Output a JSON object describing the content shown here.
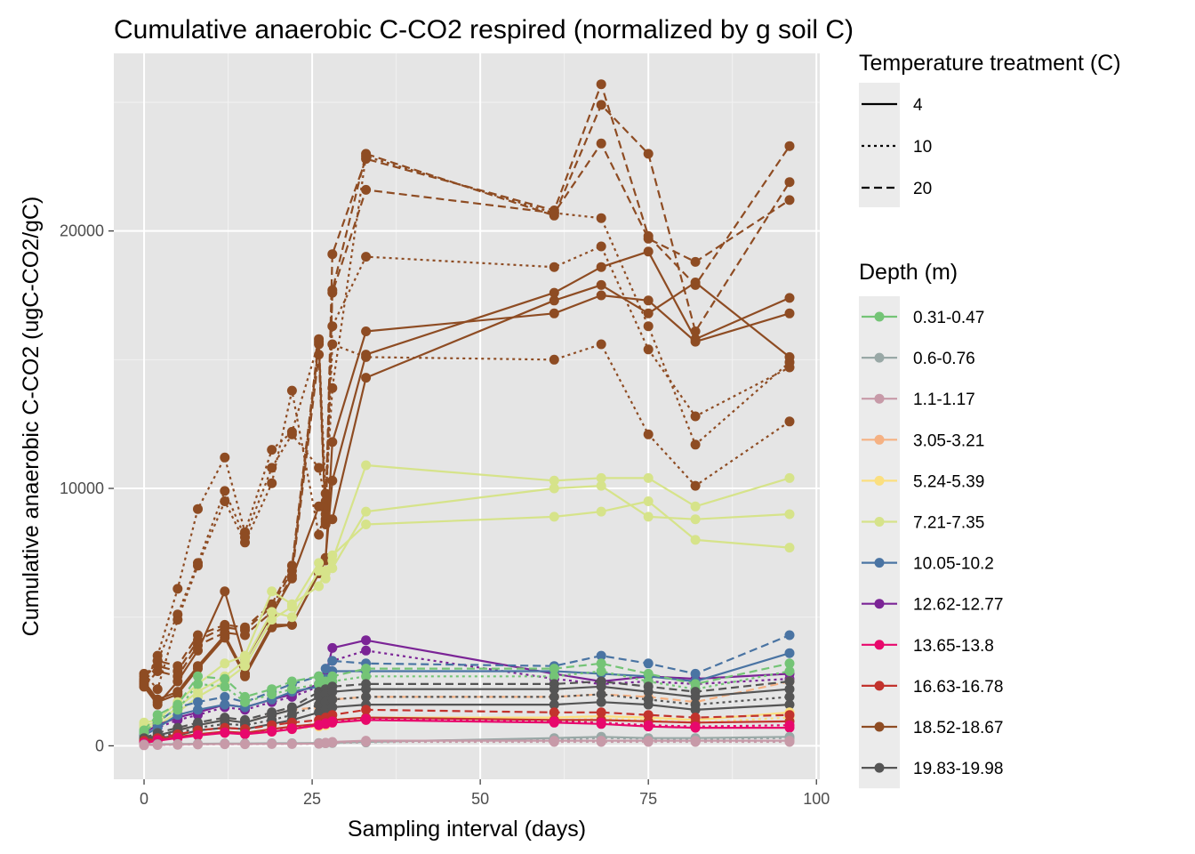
{
  "chart_data": {
    "type": "line",
    "title": "Cumulative anaerobic C-CO2 respired (normalized by g soil C)",
    "xlabel": "Sampling interval (days)",
    "ylabel": "Cumulative anaerobic C-CO2 (ugC-CO2/gC)",
    "xlim": [
      -4.5,
      100.5
    ],
    "ylim": [
      -1300,
      26900
    ],
    "x_ticks": [
      0,
      25,
      50,
      75,
      100
    ],
    "x_tick_labels": [
      "0",
      "25",
      "50",
      "75",
      "100"
    ],
    "y_ticks": [
      0,
      10000,
      20000
    ],
    "y_tick_labels": [
      "0",
      "10000",
      "20000"
    ],
    "grid": true,
    "legend_position": "right",
    "legend_linetype": {
      "title": "Temperature treatment (C)",
      "entries": [
        {
          "label": "4",
          "dash": "solid"
        },
        {
          "label": "10",
          "dash": "dotted"
        },
        {
          "label": "20",
          "dash": "dashed"
        }
      ]
    },
    "legend_color": {
      "title": "Depth (m)",
      "entries": [
        {
          "label": "0.31-0.47",
          "color": "#74c476"
        },
        {
          "label": "0.6-0.76",
          "color": "#99a8a6"
        },
        {
          "label": "1.1-1.17",
          "color": "#c79aa8"
        },
        {
          "label": "3.05-3.21",
          "color": "#f5b183"
        },
        {
          "label": "5.24-5.39",
          "color": "#fbdf7f"
        },
        {
          "label": "7.21-7.35",
          "color": "#d6e38a"
        },
        {
          "label": "10.05-10.2",
          "color": "#4a74a3"
        },
        {
          "label": "12.62-12.77",
          "color": "#7b2496"
        },
        {
          "label": "13.65-13.8",
          "color": "#e8086c"
        },
        {
          "label": "16.63-16.78",
          "color": "#c2332d"
        },
        {
          "label": "18.52-18.67",
          "color": "#8e4c23"
        },
        {
          "label": "19.83-19.98",
          "color": "#555555"
        }
      ]
    },
    "x": [
      0,
      2,
      5,
      8,
      12,
      15,
      19,
      22,
      26,
      27,
      28,
      33,
      61,
      68,
      75,
      82,
      96
    ],
    "series": [
      {
        "depth": "18.52-18.67",
        "temp": "20",
        "color": "#8e4c23",
        "dash": "dashed",
        "values": [
          2700,
          3300,
          3100,
          4300,
          4700,
          4600,
          5500,
          7000,
          15800,
          8800,
          19100,
          22800,
          20800,
          25700,
          19800,
          17900,
          23300
        ]
      },
      {
        "depth": "18.52-18.67",
        "temp": "20",
        "color": "#8e4c23",
        "dash": "dashed",
        "values": [
          2500,
          3100,
          2900,
          4100,
          4600,
          4500,
          5400,
          6800,
          15600,
          8700,
          17700,
          23000,
          20600,
          24900,
          23000,
          16100,
          21900
        ]
      },
      {
        "depth": "18.52-18.67",
        "temp": "20",
        "color": "#8e4c23",
        "dash": "dashed",
        "values": [
          2300,
          2900,
          2700,
          3900,
          4400,
          4300,
          5200,
          6600,
          15200,
          8600,
          17600,
          21600,
          20700,
          23400,
          19700,
          18800,
          21200
        ]
      },
      {
        "depth": "18.52-18.67",
        "temp": "10",
        "color": "#8e4c23",
        "dash": "dotted",
        "values": [
          2400,
          3500,
          6100,
          9200,
          11200,
          8300,
          11500,
          12200,
          15700,
          9800,
          16300,
          19000,
          18600,
          19400,
          15400,
          12800,
          14700
        ]
      },
      {
        "depth": "18.52-18.67",
        "temp": "10",
        "color": "#8e4c23",
        "dash": "dotted",
        "values": [
          2600,
          3300,
          5100,
          7100,
          9900,
          8100,
          10800,
          12100,
          10800,
          9500,
          13900,
          22900,
          20700,
          20500,
          16300,
          11700,
          14900
        ]
      },
      {
        "depth": "18.52-18.67",
        "temp": "10",
        "color": "#8e4c23",
        "dash": "dotted",
        "values": [
          2800,
          2200,
          4900,
          7000,
          9500,
          7900,
          10200,
          13800,
          8200,
          9200,
          15600,
          15100,
          15000,
          15600,
          12100,
          10100,
          12600
        ]
      },
      {
        "depth": "18.52-18.67",
        "temp": "4",
        "color": "#8e4c23",
        "dash": "solid",
        "values": [
          2500,
          1800,
          2100,
          3100,
          4300,
          2800,
          4700,
          4700,
          6700,
          7300,
          10300,
          15200,
          17600,
          18600,
          19200,
          15800,
          17400
        ]
      },
      {
        "depth": "18.52-18.67",
        "temp": "4",
        "color": "#8e4c23",
        "dash": "solid",
        "values": [
          2400,
          1700,
          2000,
          3000,
          4200,
          2700,
          4600,
          4700,
          6700,
          7200,
          11800,
          16100,
          16800,
          17500,
          17300,
          15700,
          16800
        ]
      },
      {
        "depth": "18.52-18.67",
        "temp": "4",
        "color": "#8e4c23",
        "dash": "solid",
        "values": [
          2300,
          1600,
          2500,
          3700,
          6000,
          3300,
          5100,
          6500,
          9300,
          9000,
          8800,
          14300,
          17300,
          17900,
          16800,
          18000,
          15100
        ]
      },
      {
        "depth": "7.21-7.35",
        "temp": "4",
        "color": "#d6e38a",
        "dash": "solid",
        "values": [
          900,
          1000,
          1700,
          2400,
          3200,
          3500,
          6000,
          5500,
          6200,
          6800,
          7200,
          10900,
          10300,
          10400,
          10400,
          9300,
          10400
        ]
      },
      {
        "depth": "7.21-7.35",
        "temp": "4",
        "color": "#d6e38a",
        "dash": "solid",
        "values": [
          800,
          900,
          1500,
          2100,
          2700,
          3300,
          5200,
          5000,
          6800,
          6500,
          6900,
          9100,
          10000,
          10100,
          8900,
          8800,
          9000
        ]
      },
      {
        "depth": "7.21-7.35",
        "temp": "4",
        "color": "#d6e38a",
        "dash": "solid",
        "values": [
          700,
          800,
          1300,
          1900,
          2500,
          3100,
          4900,
          5400,
          7100,
          6700,
          7400,
          8600,
          8900,
          9100,
          9500,
          8000,
          7700
        ]
      },
      {
        "depth": "12.62-12.77",
        "temp": "4",
        "color": "#7b2496",
        "dash": "solid",
        "values": [
          500,
          800,
          1100,
          1300,
          1600,
          1500,
          1800,
          2000,
          2400,
          2700,
          3800,
          4100,
          2800,
          2500,
          2700,
          2600,
          2800
        ]
      },
      {
        "depth": "12.62-12.77",
        "temp": "10",
        "color": "#7b2496",
        "dash": "dotted",
        "values": [
          400,
          700,
          1000,
          1200,
          1500,
          1400,
          1700,
          1900,
          2300,
          2500,
          3300,
          3700,
          2600,
          2400,
          2500,
          2400,
          2600
        ]
      },
      {
        "depth": "10.05-10.2",
        "temp": "20",
        "color": "#4a74a3",
        "dash": "dashed",
        "values": [
          500,
          900,
          1500,
          1700,
          1900,
          1700,
          2100,
          2400,
          2700,
          3000,
          3300,
          3200,
          3100,
          3500,
          3200,
          2800,
          4300
        ]
      },
      {
        "depth": "10.05-10.2",
        "temp": "4",
        "color": "#4a74a3",
        "dash": "solid",
        "values": [
          400,
          700,
          1200,
          1400,
          1600,
          1500,
          1800,
          2100,
          2300,
          2600,
          2900,
          2900,
          2900,
          2800,
          2700,
          2500,
          3600
        ]
      },
      {
        "depth": "0.31-0.47",
        "temp": "20",
        "color": "#74c476",
        "dash": "dashed",
        "values": [
          600,
          1200,
          1600,
          2700,
          2600,
          1900,
          2200,
          2500,
          2700,
          2500,
          2700,
          3000,
          3000,
          3200,
          2800,
          2400,
          3200
        ]
      },
      {
        "depth": "0.31-0.47",
        "temp": "10",
        "color": "#74c476",
        "dash": "dotted",
        "values": [
          500,
          1000,
          1400,
          2400,
          2300,
          1700,
          2000,
          2200,
          2400,
          2300,
          2500,
          2700,
          2700,
          2900,
          2500,
          2200,
          2900
        ]
      },
      {
        "depth": "3.05-3.21",
        "temp": "20",
        "color": "#f5b183",
        "dash": "dashed",
        "values": [
          300,
          400,
          600,
          800,
          1000,
          900,
          1200,
          1400,
          1500,
          1600,
          1800,
          1900,
          1900,
          2000,
          1900,
          1700,
          2500
        ]
      },
      {
        "depth": "19.83-19.98",
        "temp": "20",
        "color": "#555555",
        "dash": "dashed",
        "values": [
          300,
          500,
          700,
          900,
          1100,
          1000,
          1300,
          1500,
          2100,
          2200,
          2300,
          2400,
          2400,
          2500,
          2300,
          2100,
          2500
        ]
      },
      {
        "depth": "19.83-19.98",
        "temp": "4",
        "color": "#555555",
        "dash": "solid",
        "values": [
          250,
          400,
          600,
          800,
          1000,
          900,
          1200,
          1400,
          1900,
          2000,
          2100,
          2200,
          2200,
          2300,
          2100,
          1900,
          2200
        ]
      },
      {
        "depth": "19.83-19.98",
        "temp": "10",
        "color": "#555555",
        "dash": "dotted",
        "values": [
          200,
          350,
          500,
          700,
          850,
          800,
          1000,
          1200,
          1600,
          1700,
          1800,
          1900,
          1900,
          2000,
          1800,
          1600,
          1900
        ]
      },
      {
        "depth": "19.83-19.98",
        "temp": "4",
        "color": "#555555",
        "dash": "solid",
        "values": [
          150,
          300,
          400,
          600,
          700,
          650,
          850,
          1000,
          1300,
          1400,
          1500,
          1600,
          1600,
          1700,
          1600,
          1400,
          1600
        ]
      },
      {
        "depth": "5.24-5.39",
        "temp": "4",
        "color": "#fbdf7f",
        "dash": "solid",
        "values": [
          150,
          250,
          350,
          450,
          550,
          500,
          650,
          750,
          850,
          900,
          1000,
          1100,
          1100,
          1150,
          1100,
          1000,
          1300
        ]
      },
      {
        "depth": "5.24-5.39",
        "temp": "10",
        "color": "#fbdf7f",
        "dash": "dotted",
        "values": [
          100,
          200,
          300,
          400,
          500,
          450,
          550,
          650,
          750,
          800,
          900,
          1000,
          1000,
          1050,
          1000,
          900,
          1100
        ]
      },
      {
        "depth": "16.63-16.78",
        "temp": "20",
        "color": "#c2332d",
        "dash": "dashed",
        "values": [
          200,
          300,
          450,
          600,
          700,
          650,
          800,
          900,
          1000,
          1100,
          1200,
          1400,
          1300,
          1300,
          1200,
          1100,
          1200
        ]
      },
      {
        "depth": "16.63-16.78",
        "temp": "4",
        "color": "#c2332d",
        "dash": "solid",
        "values": [
          150,
          250,
          350,
          450,
          550,
          500,
          650,
          750,
          850,
          900,
          1000,
          1100,
          1000,
          1000,
          950,
          900,
          950
        ]
      },
      {
        "depth": "13.65-13.8",
        "temp": "4",
        "color": "#e8086c",
        "dash": "solid",
        "values": [
          100,
          200,
          300,
          400,
          500,
          450,
          550,
          650,
          800,
          850,
          900,
          1000,
          900,
          850,
          750,
          700,
          700
        ]
      },
      {
        "depth": "13.65-13.8",
        "temp": "10",
        "color": "#e8086c",
        "dash": "dotted",
        "values": [
          120,
          220,
          320,
          420,
          520,
          470,
          580,
          680,
          820,
          880,
          950,
          1050,
          950,
          900,
          800,
          750,
          800
        ]
      },
      {
        "depth": "0.6-0.76",
        "temp": "4",
        "color": "#99a8a6",
        "dash": "solid",
        "values": [
          50,
          60,
          70,
          80,
          90,
          90,
          100,
          100,
          110,
          110,
          120,
          150,
          300,
          350,
          300,
          300,
          350
        ]
      },
      {
        "depth": "0.6-0.76",
        "temp": "10",
        "color": "#99a8a6",
        "dash": "dotted",
        "values": [
          40,
          50,
          60,
          70,
          80,
          80,
          90,
          90,
          100,
          100,
          110,
          130,
          250,
          300,
          280,
          270,
          300
        ]
      },
      {
        "depth": "1.1-1.17",
        "temp": "4",
        "color": "#c79aa8",
        "dash": "solid",
        "values": [
          30,
          40,
          50,
          60,
          70,
          70,
          80,
          80,
          90,
          120,
          150,
          200,
          200,
          200,
          200,
          200,
          200
        ]
      },
      {
        "depth": "1.1-1.17",
        "temp": "10",
        "color": "#c79aa8",
        "dash": "dotted",
        "values": [
          20,
          30,
          40,
          50,
          60,
          60,
          70,
          70,
          80,
          100,
          120,
          150,
          150,
          150,
          150,
          150,
          150
        ]
      }
    ]
  }
}
